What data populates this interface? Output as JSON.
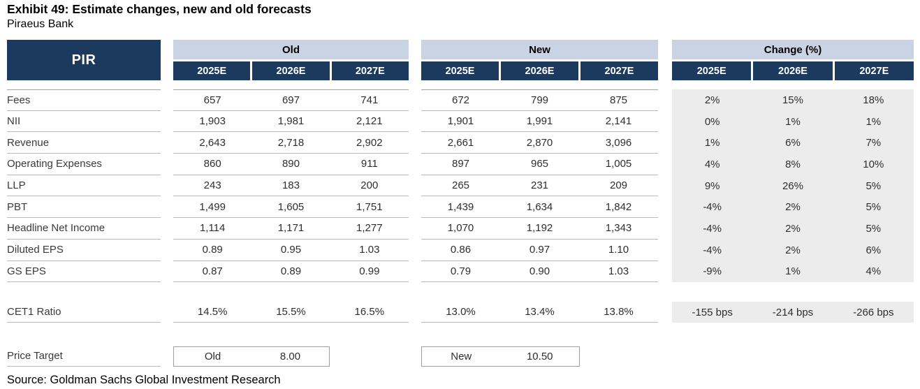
{
  "title": "Exhibit 49: Estimate changes, new and old forecasts",
  "subtitle": "Piraeus Bank",
  "source": "Source: Goldman Sachs Global Investment Research",
  "colors": {
    "navy": "#1b3a5d",
    "band_blue": "#cad3e3",
    "change_gray": "#ececec"
  },
  "table": {
    "entity": "PIR",
    "groups": {
      "old": "Old",
      "new": "New",
      "change": "Change (%)"
    },
    "years": [
      "2025E",
      "2026E",
      "2027E"
    ],
    "rows": [
      {
        "label": "Fees",
        "old": [
          "657",
          "697",
          "741"
        ],
        "new": [
          "672",
          "799",
          "875"
        ],
        "chg": [
          "2%",
          "15%",
          "18%"
        ]
      },
      {
        "label": "NII",
        "old": [
          "1,903",
          "1,981",
          "2,121"
        ],
        "new": [
          "1,901",
          "1,991",
          "2,141"
        ],
        "chg": [
          "0%",
          "1%",
          "1%"
        ]
      },
      {
        "label": "Revenue",
        "old": [
          "2,643",
          "2,718",
          "2,902"
        ],
        "new": [
          "2,661",
          "2,870",
          "3,096"
        ],
        "chg": [
          "1%",
          "6%",
          "7%"
        ]
      },
      {
        "label": "Operating Expenses",
        "old": [
          "860",
          "890",
          "911"
        ],
        "new": [
          "897",
          "965",
          "1,005"
        ],
        "chg": [
          "4%",
          "8%",
          "10%"
        ]
      },
      {
        "label": "LLP",
        "old": [
          "243",
          "183",
          "200"
        ],
        "new": [
          "265",
          "231",
          "209"
        ],
        "chg": [
          "9%",
          "26%",
          "5%"
        ]
      },
      {
        "label": "PBT",
        "old": [
          "1,499",
          "1,605",
          "1,751"
        ],
        "new": [
          "1,439",
          "1,634",
          "1,842"
        ],
        "chg": [
          "-4%",
          "2%",
          "5%"
        ]
      },
      {
        "label": "Headline Net Income",
        "old": [
          "1,114",
          "1,171",
          "1,277"
        ],
        "new": [
          "1,070",
          "1,192",
          "1,343"
        ],
        "chg": [
          "-4%",
          "2%",
          "5%"
        ]
      },
      {
        "label": "Diluted EPS",
        "old": [
          "0.89",
          "0.95",
          "1.03"
        ],
        "new": [
          "0.86",
          "0.97",
          "1.10"
        ],
        "chg": [
          "-4%",
          "2%",
          "6%"
        ]
      },
      {
        "label": "GS EPS",
        "old": [
          "0.87",
          "0.89",
          "0.99"
        ],
        "new": [
          "0.79",
          "0.90",
          "1.03"
        ],
        "chg": [
          "-9%",
          "1%",
          "4%"
        ]
      }
    ],
    "cet1": {
      "label": "CET1 Ratio",
      "old": [
        "14.5%",
        "15.5%",
        "16.5%"
      ],
      "new": [
        "13.0%",
        "13.4%",
        "13.8%"
      ],
      "chg": [
        "-155 bps",
        "-214 bps",
        "-266 bps"
      ]
    },
    "price_target": {
      "label": "Price Target",
      "old_label": "Old",
      "old_value": "8.00",
      "new_label": "New",
      "new_value": "10.50"
    }
  }
}
